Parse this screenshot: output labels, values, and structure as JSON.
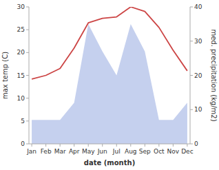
{
  "chart_data": {
    "type": "line",
    "xlabel": "date (month)",
    "ylabel": "max temp (C)",
    "y2label": "med. precipitation  (kg/m2)",
    "categories": [
      "Jan",
      "Feb",
      "Mar",
      "Apr",
      "May",
      "Jun",
      "Jul",
      "Aug",
      "Sep",
      "Oct",
      "Nov",
      "Dec"
    ],
    "series": [
      {
        "type": "area",
        "axis": "y2",
        "color": "#c5d0ee",
        "values": [
          7,
          7,
          7,
          12,
          35,
          27,
          20,
          35,
          27,
          7,
          7,
          12
        ]
      },
      {
        "type": "line",
        "color": "#cc4444",
        "values": [
          14.2,
          15.0,
          16.5,
          21.0,
          26.5,
          27.5,
          27.8,
          30.0,
          29.0,
          25.5,
          20.5,
          16.0
        ]
      }
    ],
    "ylim": [
      0,
      30
    ],
    "yticks": [
      0,
      5,
      10,
      15,
      20,
      25,
      30
    ],
    "y2lim": [
      0,
      40
    ],
    "y2ticks": [
      0,
      10,
      20,
      30,
      40
    ]
  }
}
